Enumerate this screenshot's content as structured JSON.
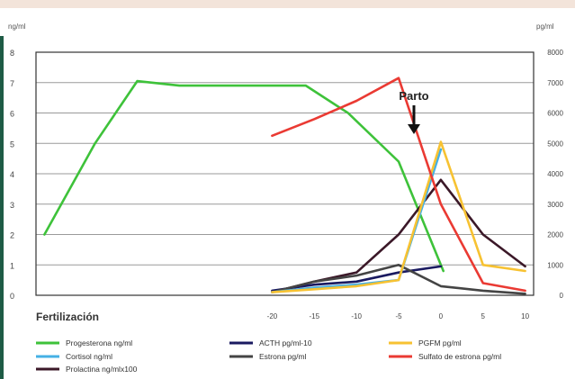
{
  "chart_data": {
    "type": "line",
    "left_unit": "ng/ml",
    "right_unit": "pg/ml",
    "x_title": "Fertilización",
    "x_ticks": [
      -20,
      -15,
      -10,
      -5,
      0,
      5,
      10
    ],
    "xlim": [
      -48,
      11
    ],
    "y_left": {
      "ticks": [
        0,
        1,
        2,
        3,
        4,
        5,
        6,
        7,
        8
      ],
      "ylim": [
        0,
        8
      ]
    },
    "y_right": {
      "ticks": [
        0,
        1000,
        2000,
        3000,
        4000,
        5000,
        6000,
        7000,
        8000
      ],
      "ylim": [
        0,
        8000
      ]
    },
    "grid": true,
    "annotation": {
      "text": "Parto",
      "x": 0
    },
    "series": [
      {
        "name": "Progesterona ng/ml",
        "color": "#3ec23a",
        "axis": "left",
        "x": [
          -47,
          -41,
          -36,
          -31,
          -24,
          -16,
          -11,
          -5,
          0.3
        ],
        "y": [
          2.0,
          5.0,
          7.05,
          6.9,
          6.9,
          6.9,
          6.0,
          4.4,
          0.8
        ]
      },
      {
        "name": "Cortisol ng/ml",
        "color": "#45b0e5",
        "axis": "left",
        "x": [
          -20,
          -15,
          -10,
          -5,
          0
        ],
        "y": [
          0.1,
          0.25,
          0.35,
          0.5,
          4.8
        ]
      },
      {
        "name": "Prolactina ng/mlx100",
        "color": "#3b1828",
        "axis": "left",
        "x": [
          -20,
          -15,
          -10,
          -5,
          0,
          5,
          10
        ],
        "y": [
          0.1,
          0.45,
          0.75,
          2.0,
          3.8,
          2.0,
          0.95
        ]
      },
      {
        "name": "ACTH pg/ml-10",
        "color": "#1a1a60",
        "axis": "left",
        "x": [
          -20,
          -15,
          -10,
          -5,
          0
        ],
        "y": [
          0.15,
          0.35,
          0.45,
          0.75,
          0.95
        ]
      },
      {
        "name": "Estrona pg/ml",
        "color": "#444444",
        "axis": "left",
        "x": [
          -20,
          -15,
          -10,
          -5,
          0,
          5,
          10
        ],
        "y": [
          0.1,
          0.45,
          0.65,
          1.0,
          0.3,
          0.15,
          0.05
        ]
      },
      {
        "name": "PGFM pg/ml",
        "color": "#f7c232",
        "axis": "left",
        "x": [
          -20,
          -15,
          -10,
          -5,
          0,
          5,
          10
        ],
        "y": [
          0.1,
          0.2,
          0.3,
          0.5,
          5.05,
          1.0,
          0.8
        ]
      },
      {
        "name": "Sulfato de estrona pg/ml",
        "color": "#ea3a33",
        "axis": "right",
        "x": [
          -20,
          -15,
          -10,
          -5,
          0,
          5,
          10
        ],
        "y": [
          5250,
          5800,
          6400,
          7150,
          3000,
          400,
          150
        ]
      }
    ]
  }
}
